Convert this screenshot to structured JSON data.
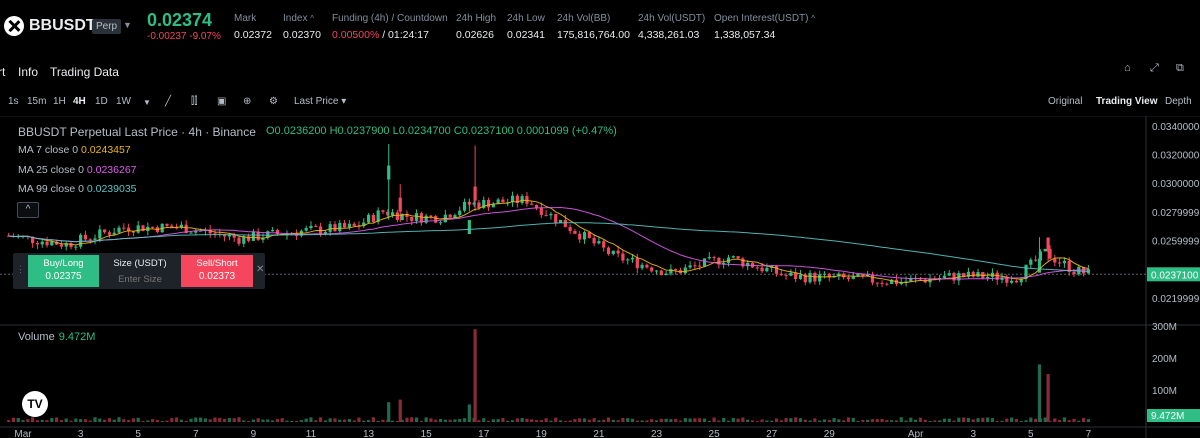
{
  "header": {
    "symbol": "BBUSDT",
    "contract_type": "Perp",
    "last_price": "0.02374",
    "change": "-0.00237 -9.07%",
    "stats": [
      {
        "label": "Mark",
        "value": "0.02372"
      },
      {
        "label": "Index",
        "value": "0.02370"
      },
      {
        "label": "Funding (4h) / Countdown",
        "value": "0.00500%",
        "value2": " / 01:24:17"
      },
      {
        "label": "24h High",
        "value": "0.02626"
      },
      {
        "label": "24h Low",
        "value": "0.02341"
      },
      {
        "label": "24h Vol(BB)",
        "value": "175,816,764.00"
      },
      {
        "label": "24h Vol(USDT)",
        "value": "4,338,261.03"
      },
      {
        "label": "Open Interest(USDT)",
        "value": "1,338,057.34"
      }
    ]
  },
  "tabs": [
    "rt",
    "Info",
    "Trading Data"
  ],
  "toolbar": {
    "intervals": [
      "1s",
      "15m",
      "1H",
      "4H",
      "1D",
      "1W"
    ],
    "active_interval": "4H",
    "price_type": "Last Price",
    "views": [
      "Original",
      "Trading View",
      "Depth"
    ],
    "active_view": "Trading View"
  },
  "legend": {
    "title": "BBUSDT Perpetual Last Price · 4h · Binance",
    "ohlc": "O0.0236200 H0.0237900 L0.0234700 C0.0237100 0.0001099 (+0.47%)",
    "ma7_label": "MA 7 close 0",
    "ma7_value": "0.0243457",
    "ma25_label": "MA 25 close 0",
    "ma25_value": "0.0236267",
    "ma99_label": "MA 99 close 0",
    "ma99_value": "0.0239035",
    "ma7_color": "#f0b90b",
    "ma25_color": "#e05cf0",
    "ma99_color": "#5bc4c4"
  },
  "trade_panel": {
    "buy_label": "Buy/Long",
    "buy_price": "0.02375",
    "size_label": "Size (USDT)",
    "size_placeholder": "Enter Size",
    "sell_label": "Sell/Short",
    "sell_price": "0.02373"
  },
  "volume": {
    "label": "Volume",
    "value": "9.472M"
  },
  "chart_data": {
    "type": "candlestick",
    "price_axis": [
      "0.0340000",
      "0.0320000",
      "0.0300000",
      "0.0279999",
      "0.0259999",
      "0.0237100",
      "0.0219999"
    ],
    "current_price_label": "0.0237100",
    "volume_axis": [
      "300M",
      "200M",
      "100M"
    ],
    "current_volume_label": "9.472M",
    "x_ticks": [
      "Mar",
      "3",
      "5",
      "7",
      "9",
      "11",
      "13",
      "15",
      "17",
      "19",
      "21",
      "23",
      "25",
      "27",
      "29",
      "Apr",
      "3",
      "5",
      "7"
    ],
    "x_tick_values": [
      1,
      3,
      5,
      7,
      9,
      11,
      13,
      15,
      17,
      19,
      21,
      23,
      25,
      27,
      29,
      32,
      34,
      36,
      38
    ],
    "price_range": [
      0.0208,
      0.0342
    ],
    "volume_range": [
      0,
      300
    ],
    "trend_segments": [
      {
        "day": 0,
        "price": 0.0264
      },
      {
        "day": 2,
        "price": 0.0258
      },
      {
        "day": 4,
        "price": 0.027
      },
      {
        "day": 6,
        "price": 0.027
      },
      {
        "day": 8,
        "price": 0.0262
      },
      {
        "day": 10,
        "price": 0.0267
      },
      {
        "day": 12,
        "price": 0.027
      },
      {
        "day": 13,
        "price": 0.0281
      },
      {
        "day": 14,
        "price": 0.0277
      },
      {
        "day": 15,
        "price": 0.0277
      },
      {
        "day": 16,
        "price": 0.0286
      },
      {
        "day": 18,
        "price": 0.0289
      },
      {
        "day": 19,
        "price": 0.0276
      },
      {
        "day": 21,
        "price": 0.025
      },
      {
        "day": 23,
        "price": 0.0238
      },
      {
        "day": 25,
        "price": 0.0249
      },
      {
        "day": 27,
        "price": 0.0236
      },
      {
        "day": 29,
        "price": 0.0234
      },
      {
        "day": 31,
        "price": 0.0232
      },
      {
        "day": 33,
        "price": 0.0236
      },
      {
        "day": 35,
        "price": 0.0235
      },
      {
        "day": 36,
        "price": 0.0252
      },
      {
        "day": 37,
        "price": 0.024
      },
      {
        "day": 37.6,
        "price": 0.0237
      }
    ],
    "spikes": [
      {
        "day": 13.2,
        "high": 0.0328,
        "volume": 62,
        "up": true
      },
      {
        "day": 13.6,
        "high": 0.03,
        "volume": 70,
        "up": false
      },
      {
        "day": 16.2,
        "high": 0.0327,
        "volume": 290,
        "up": false
      },
      {
        "day": 16.0,
        "high": 0.029,
        "volume": 55,
        "up": true
      },
      {
        "day": 35.8,
        "high": 0.0263,
        "volume": 180,
        "up": true
      },
      {
        "day": 36.1,
        "high": 0.0258,
        "volume": 150,
        "up": false
      }
    ]
  }
}
